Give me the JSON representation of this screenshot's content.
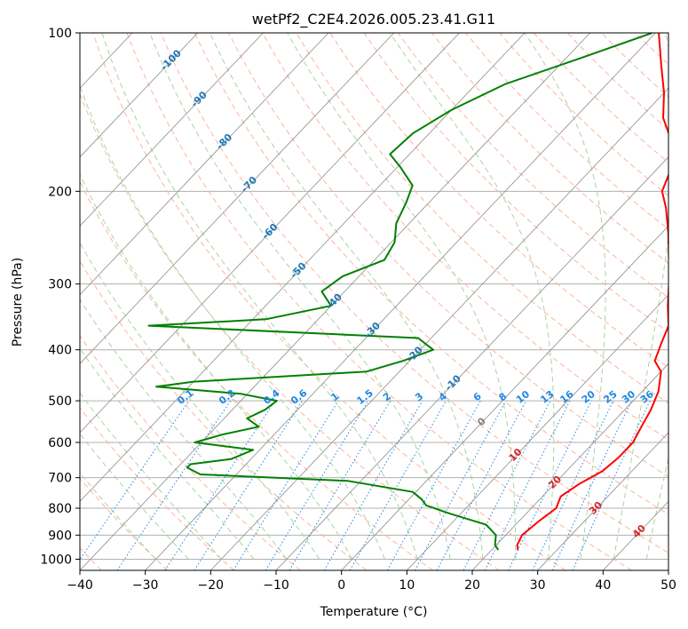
{
  "chart_data": {
    "type": "line",
    "diagram": "skew-T log-p",
    "title": "wetPf2_C2E4.2026.005.23.41.G11",
    "xlabel": "Temperature (°C)",
    "ylabel": "Pressure (hPa)",
    "xlim": [
      -40,
      50
    ],
    "ylim": [
      1050,
      100
    ],
    "y_scale": "log",
    "grid": true,
    "x_ticks": [
      -40,
      -30,
      -20,
      -10,
      0,
      10,
      20,
      30,
      40,
      50
    ],
    "y_ticks": [
      100,
      200,
      300,
      400,
      500,
      600,
      700,
      800,
      900,
      1000
    ],
    "series": [
      {
        "color": "#ff0000",
        "points": [
          {
            "p": 960,
            "t": 24.0
          },
          {
            "p": 940,
            "t": 23.2
          },
          {
            "p": 900,
            "t": 22.5
          },
          {
            "p": 850,
            "t": 23.0
          },
          {
            "p": 800,
            "t": 23.8
          },
          {
            "p": 760,
            "t": 22.8
          },
          {
            "p": 720,
            "t": 23.8
          },
          {
            "p": 680,
            "t": 25.5
          },
          {
            "p": 640,
            "t": 26.0
          },
          {
            "p": 600,
            "t": 26.0
          },
          {
            "p": 560,
            "t": 25.0
          },
          {
            "p": 520,
            "t": 24.0
          },
          {
            "p": 480,
            "t": 22.5
          },
          {
            "p": 440,
            "t": 20.0
          },
          {
            "p": 420,
            "t": 17.5
          },
          {
            "p": 390,
            "t": 16.0
          },
          {
            "p": 360,
            "t": 14.5
          },
          {
            "p": 330,
            "t": 11.5
          },
          {
            "p": 300,
            "t": 8.5
          },
          {
            "p": 270,
            "t": 5.0
          },
          {
            "p": 240,
            "t": 1.0
          },
          {
            "p": 215,
            "t": -3.0
          },
          {
            "p": 200,
            "t": -6.0
          },
          {
            "p": 185,
            "t": -7.5
          },
          {
            "p": 175,
            "t": -8.5
          },
          {
            "p": 160,
            "t": -12.0
          },
          {
            "p": 145,
            "t": -16.5
          },
          {
            "p": 130,
            "t": -20.0
          },
          {
            "p": 115,
            "t": -24.5
          },
          {
            "p": 100,
            "t": -29.5
          }
        ]
      },
      {
        "color": "#008000",
        "points": [
          {
            "p": 960,
            "t": 21.0
          },
          {
            "p": 940,
            "t": 19.8
          },
          {
            "p": 900,
            "t": 18.5
          },
          {
            "p": 860,
            "t": 15.5
          },
          {
            "p": 820,
            "t": 8.5
          },
          {
            "p": 790,
            "t": 3.5
          },
          {
            "p": 770,
            "t": 2.0
          },
          {
            "p": 745,
            "t": -0.5
          },
          {
            "p": 710,
            "t": -12.0
          },
          {
            "p": 690,
            "t": -35.5
          },
          {
            "p": 670,
            "t": -38.5
          },
          {
            "p": 660,
            "t": -38.5
          },
          {
            "p": 645,
            "t": -33.0
          },
          {
            "p": 620,
            "t": -31.0
          },
          {
            "p": 600,
            "t": -41.0
          },
          {
            "p": 580,
            "t": -38.0
          },
          {
            "p": 560,
            "t": -33.5
          },
          {
            "p": 540,
            "t": -36.5
          },
          {
            "p": 520,
            "t": -35.0
          },
          {
            "p": 500,
            "t": -34.5
          },
          {
            "p": 485,
            "t": -41.0
          },
          {
            "p": 470,
            "t": -55.0
          },
          {
            "p": 460,
            "t": -50.0
          },
          {
            "p": 440,
            "t": -25.0
          },
          {
            "p": 420,
            "t": -21.0
          },
          {
            "p": 400,
            "t": -18.0
          },
          {
            "p": 380,
            "t": -22.0
          },
          {
            "p": 360,
            "t": -65.0
          },
          {
            "p": 350,
            "t": -48.0
          },
          {
            "p": 330,
            "t": -40.0
          },
          {
            "p": 310,
            "t": -43.5
          },
          {
            "p": 290,
            "t": -42.5
          },
          {
            "p": 270,
            "t": -38.5
          },
          {
            "p": 250,
            "t": -39.5
          },
          {
            "p": 230,
            "t": -42.0
          },
          {
            "p": 210,
            "t": -43.5
          },
          {
            "p": 195,
            "t": -45.0
          },
          {
            "p": 180,
            "t": -49.5
          },
          {
            "p": 170,
            "t": -53.0
          },
          {
            "p": 155,
            "t": -52.5
          },
          {
            "p": 140,
            "t": -50.0
          },
          {
            "p": 125,
            "t": -45.5
          },
          {
            "p": 112,
            "t": -38.0
          },
          {
            "p": 100,
            "t": -30.5
          }
        ]
      }
    ],
    "isotherm_labels": [
      {
        "text": "-100",
        "color": "#1f77b4"
      },
      {
        "text": "-90",
        "color": "#1f77b4"
      },
      {
        "text": "-80",
        "color": "#1f77b4"
      },
      {
        "text": "-70",
        "color": "#1f77b4"
      },
      {
        "text": "-60",
        "color": "#1f77b4"
      },
      {
        "text": "-50",
        "color": "#1f77b4"
      },
      {
        "text": "-40",
        "color": "#1f77b4"
      },
      {
        "text": "-30",
        "color": "#1f77b4"
      },
      {
        "text": "-20",
        "color": "#1f77b4"
      },
      {
        "text": "-10",
        "color": "#1f77b4"
      },
      {
        "text": "0",
        "color": "#7f7f7f"
      },
      {
        "text": "10",
        "color": "#d62728"
      },
      {
        "text": "20",
        "color": "#d62728"
      },
      {
        "text": "30",
        "color": "#d62728"
      },
      {
        "text": "40",
        "color": "#d62728"
      }
    ],
    "mixing_ratio_labels": [
      "0.1",
      "0.2",
      "0.4",
      "0.6",
      "1",
      "1.5",
      "2",
      "3",
      "4",
      "6",
      "8",
      "10",
      "13",
      "16",
      "20",
      "25",
      "30",
      "36"
    ],
    "colors": {
      "temperature": "#ff0000",
      "dewpoint": "#008000",
      "dry_adiabat": "#fdb49e",
      "moist_adiabat": "#a8d5a2",
      "mixing_ratio": "#1e88e5",
      "isotherm": "#8c8c8c",
      "grid": "#b0b0b0"
    }
  }
}
